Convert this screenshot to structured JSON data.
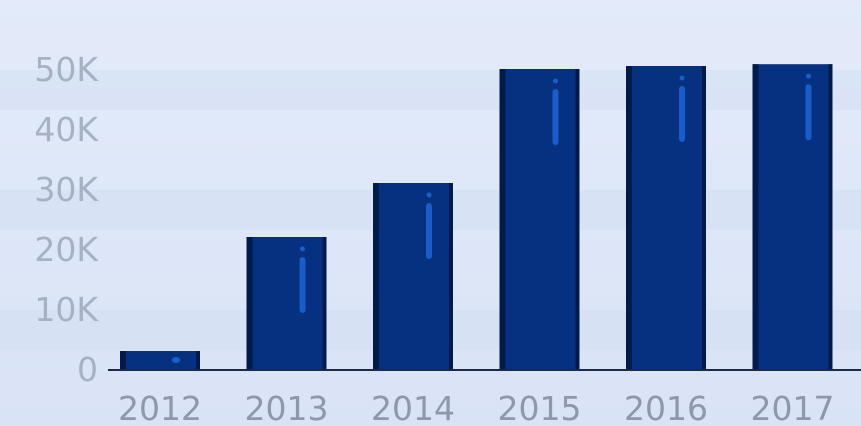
{
  "chart_data": {
    "type": "bar",
    "title": "",
    "xlabel": "",
    "ylabel": "",
    "categories": [
      "2012",
      "2013",
      "2014",
      "2015",
      "2016",
      "2017"
    ],
    "values": [
      3000,
      22000,
      31000,
      50000,
      50500,
      50800
    ],
    "ylim": [
      0,
      55000
    ],
    "yticks": [
      0,
      10000,
      20000,
      30000,
      40000,
      50000
    ],
    "ytick_labels": [
      "0",
      "10K",
      "20K",
      "30K",
      "40K",
      "50K"
    ],
    "grid": false,
    "legend": "none",
    "colors": {
      "bar": "#063180",
      "bar_edge": "#021a4a",
      "bar_highlight": "#1a5cc8",
      "axis": "#1d2a45",
      "band": "#d3def3",
      "background": "#e0e8f8"
    }
  }
}
